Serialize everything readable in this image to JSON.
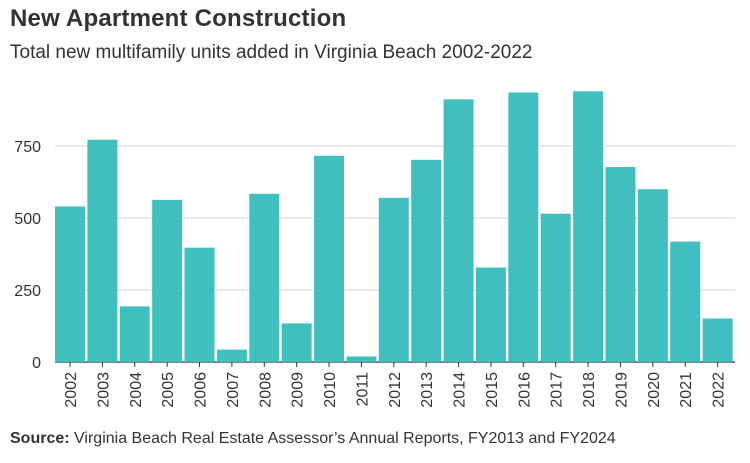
{
  "header": {
    "title": "New Apartment Construction",
    "subtitle": "Total new multifamily units added in Virginia Beach 2002-2022"
  },
  "footer": {
    "source_label": "Source:",
    "source_text": "Virginia Beach Real Estate Assessor’s Annual Reports, FY2013 and FY2024"
  },
  "colors": {
    "bar": "#40BFC1",
    "grid": "#d6d6d6",
    "axis": "#333333"
  },
  "chart_data": {
    "type": "bar",
    "title": "New Apartment Construction",
    "subtitle": "Total new multifamily units added in Virginia Beach 2002-2022",
    "xlabel": "",
    "ylabel": "",
    "categories": [
      "2002",
      "2003",
      "2004",
      "2005",
      "2006",
      "2007",
      "2008",
      "2009",
      "2010",
      "2011",
      "2012",
      "2013",
      "2014",
      "2015",
      "2016",
      "2017",
      "2018",
      "2019",
      "2020",
      "2021",
      "2022"
    ],
    "values": [
      540,
      772,
      193,
      563,
      397,
      43,
      584,
      134,
      716,
      19,
      570,
      702,
      912,
      328,
      936,
      515,
      940,
      677,
      600,
      418,
      151
    ],
    "ylim": [
      0,
      960
    ],
    "yticks": [
      0,
      250,
      500,
      750
    ],
    "grid": true,
    "legend": "none"
  }
}
